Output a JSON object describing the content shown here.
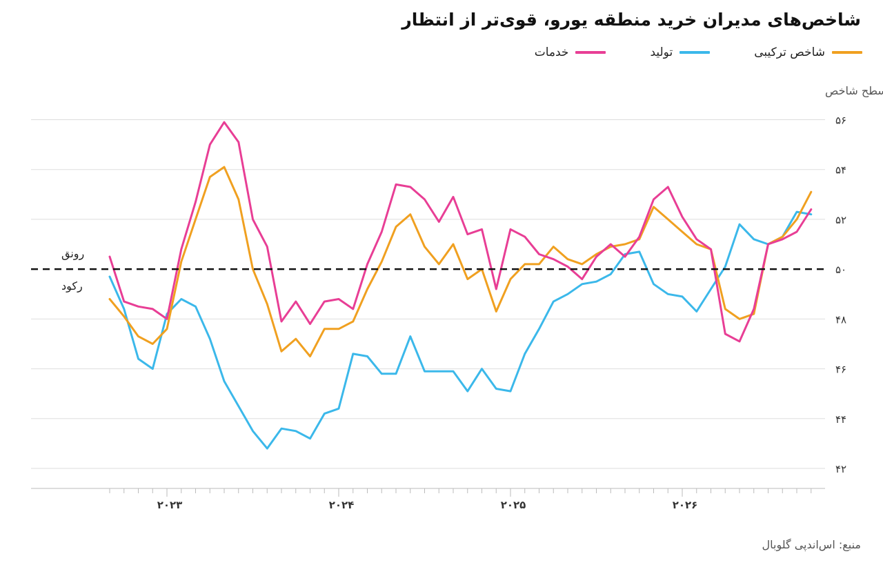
{
  "title": "شاخص‌های مدیران خرید منطقه یورو، قوی‌تر از انتظار",
  "source": "منبع: اس‌اندپی گلوبال",
  "colors": {
    "composite": "#f0a020",
    "manufacturing": "#3bb8ea",
    "services": "#e83e95"
  },
  "chart_data": {
    "type": "line",
    "ylabel": "سطح شاخص",
    "ylim": [
      42,
      56
    ],
    "yticks": [
      42,
      44,
      46,
      48,
      50,
      52,
      54,
      56
    ],
    "ytick_labels": [
      "۴۲",
      "۴۴",
      "۴۶",
      "۴۸",
      "۵۰",
      "۵۲",
      "۵۴",
      "۵۶"
    ],
    "grid": true,
    "legend_position": "top-right",
    "xtick_labels": [
      "۲۰۲۳",
      "۲۰۲۴",
      "۲۰۲۵",
      "۲۰۲۶"
    ],
    "xtick_index": [
      4,
      16,
      28,
      40
    ],
    "threshold": {
      "value": 50,
      "above_label": "رونق",
      "below_label": "رکود"
    },
    "series": [
      {
        "key": "composite",
        "name": "شاخص ترکیبی",
        "values": [
          48.8,
          48.1,
          47.3,
          47.0,
          47.6,
          50.3,
          52.0,
          53.7,
          54.1,
          52.8,
          50.0,
          48.6,
          46.7,
          47.2,
          46.5,
          47.6,
          47.6,
          47.9,
          49.2,
          50.3,
          51.7,
          52.2,
          50.9,
          50.2,
          51.0,
          49.6,
          50.0,
          48.3,
          49.6,
          50.2,
          50.2,
          50.9,
          50.4,
          50.2,
          50.6,
          50.9,
          51.0,
          51.2,
          52.5,
          52.0,
          51.5,
          51.0,
          50.8,
          48.4,
          48.0,
          48.2,
          51.0,
          51.3,
          52.0,
          53.1
        ]
      },
      {
        "key": "manufacturing",
        "name": "تولید",
        "values": [
          49.7,
          48.4,
          46.4,
          46.0,
          48.2,
          48.8,
          48.5,
          47.2,
          45.5,
          44.5,
          43.5,
          42.8,
          43.6,
          43.5,
          43.2,
          44.2,
          44.4,
          46.6,
          46.5,
          45.8,
          45.8,
          47.3,
          45.9,
          45.9,
          45.9,
          45.1,
          46.0,
          45.2,
          45.1,
          46.6,
          47.6,
          48.7,
          49.0,
          49.4,
          49.5,
          49.8,
          50.6,
          50.7,
          49.4,
          49.0,
          48.9,
          48.3,
          49.2,
          50.1,
          51.8,
          51.2,
          51.0,
          51.3,
          52.3,
          52.2
        ]
      },
      {
        "key": "services",
        "name": "خدمات",
        "values": [
          50.5,
          48.7,
          48.5,
          48.4,
          48.0,
          50.8,
          52.7,
          55.0,
          55.9,
          55.1,
          52.0,
          50.9,
          47.9,
          48.7,
          47.8,
          48.7,
          48.8,
          48.4,
          50.2,
          51.5,
          53.4,
          53.3,
          52.8,
          51.9,
          52.9,
          51.4,
          51.6,
          49.2,
          51.6,
          51.3,
          50.6,
          50.4,
          50.1,
          49.6,
          50.5,
          51.0,
          50.5,
          51.3,
          52.8,
          53.3,
          52.1,
          51.2,
          50.8,
          47.4,
          47.1,
          48.4,
          51.0,
          51.2,
          51.5,
          52.4
        ]
      }
    ]
  }
}
